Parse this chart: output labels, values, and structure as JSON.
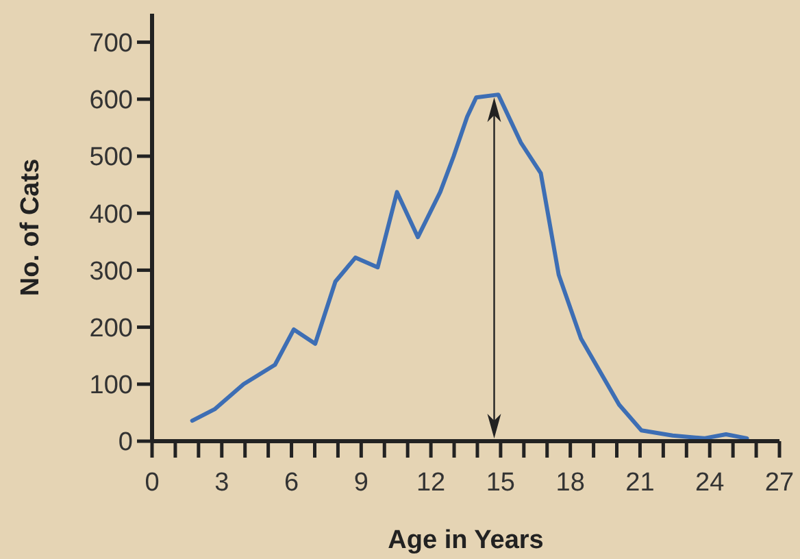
{
  "chart_data": {
    "type": "line",
    "xlabel": "Age in Years",
    "ylabel": "No. of Cats",
    "x": [
      1.73,
      2.69,
      3.94,
      5.29,
      6.1,
      7.02,
      7.89,
      8.75,
      9.71,
      10.54,
      11.44,
      12.4,
      12.98,
      13.56,
      13.95,
      14.9,
      15.87,
      16.73,
      17.5,
      18.46,
      20.1,
      21.06,
      22.4,
      23.76,
      24.7,
      25.6
    ],
    "series": [
      {
        "color": "#3d6eb4",
        "values": [
          36,
          56,
          100,
          134,
          196,
          171,
          280,
          322,
          305,
          437,
          358,
          437,
          500,
          569,
          603,
          608,
          524,
          470,
          292,
          180,
          64,
          19,
          10,
          5,
          12,
          5
        ]
      }
    ],
    "xlim": [
      0,
      27
    ],
    "ylim": [
      0,
      750
    ],
    "xticks": [
      0,
      {
        "value": 1,
        "label": null
      },
      {
        "value": 2,
        "label": null
      },
      3,
      {
        "value": 4,
        "label": null
      },
      {
        "value": 5,
        "label": null
      },
      6,
      {
        "value": 7,
        "label": null
      },
      {
        "value": 8,
        "label": null
      },
      9,
      {
        "value": 10,
        "label": null
      },
      {
        "value": 11,
        "label": null
      },
      12,
      {
        "value": 13,
        "label": null
      },
      {
        "value": 14,
        "label": null
      },
      15,
      {
        "value": 16,
        "label": null
      },
      {
        "value": 17,
        "label": null
      },
      18,
      {
        "value": 19,
        "label": null
      },
      {
        "value": 20,
        "label": null
      },
      21,
      {
        "value": 22,
        "label": null
      },
      {
        "value": 23,
        "label": null
      },
      24,
      {
        "value": 25,
        "label": null
      },
      {
        "value": 26,
        "label": null
      },
      27
    ],
    "yticks": [
      0,
      100,
      200,
      300,
      400,
      500,
      600,
      700
    ],
    "grid": false,
    "marker": "none",
    "line_style": "solid"
  }
}
